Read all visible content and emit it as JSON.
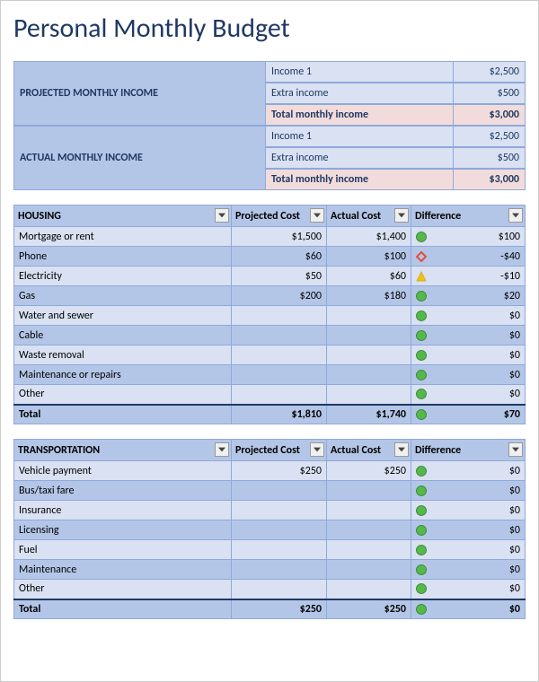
{
  "title": "Personal Monthly Budget",
  "colors": {
    "header_bg": "#b4c6e7",
    "row_light": "#d9e1f2",
    "row_dark": "#b4c6e7",
    "total_bg": "#f2dcdb",
    "border": "#8ea9db",
    "title": "#1f3864",
    "green": "#54b948",
    "red": "#e74c3c",
    "yellow": "#f1c40f"
  },
  "income": {
    "projected": {
      "label": "PROJECTED MONTHLY INCOME",
      "rows": [
        {
          "label": "Income 1",
          "value": "$2,500"
        },
        {
          "label": "Extra income",
          "value": "$500"
        }
      ],
      "total_label": "Total monthly income",
      "total_value": "$3,000"
    },
    "actual": {
      "label": "ACTUAL MONTHLY INCOME",
      "rows": [
        {
          "label": "Income 1",
          "value": "$2,500"
        },
        {
          "label": "Extra income",
          "value": "$500"
        }
      ],
      "total_label": "Total monthly income",
      "total_value": "$3,000"
    }
  },
  "columns": {
    "projected": "Projected Cost",
    "actual": "Actual Cost",
    "difference": "Difference"
  },
  "categories": [
    {
      "name": "HOUSING",
      "rows": [
        {
          "label": "Mortgage or rent",
          "projected": "$1,500",
          "actual": "$1,400",
          "ind": "green",
          "diff": "$100"
        },
        {
          "label": "Phone",
          "projected": "$60",
          "actual": "$100",
          "ind": "red",
          "diff": "-$40"
        },
        {
          "label": "Electricity",
          "projected": "$50",
          "actual": "$60",
          "ind": "yellow",
          "diff": "-$10"
        },
        {
          "label": "Gas",
          "projected": "$200",
          "actual": "$180",
          "ind": "green",
          "diff": "$20"
        },
        {
          "label": "Water and sewer",
          "projected": "",
          "actual": "",
          "ind": "green",
          "diff": "$0"
        },
        {
          "label": "Cable",
          "projected": "",
          "actual": "",
          "ind": "green",
          "diff": "$0"
        },
        {
          "label": "Waste removal",
          "projected": "",
          "actual": "",
          "ind": "green",
          "diff": "$0"
        },
        {
          "label": "Maintenance or repairs",
          "projected": "",
          "actual": "",
          "ind": "green",
          "diff": "$0"
        },
        {
          "label": "Other",
          "projected": "",
          "actual": "",
          "ind": "green",
          "diff": "$0"
        }
      ],
      "total": {
        "label": "Total",
        "projected": "$1,810",
        "actual": "$1,740",
        "ind": "green",
        "diff": "$70"
      }
    },
    {
      "name": "TRANSPORTATION",
      "rows": [
        {
          "label": "Vehicle payment",
          "projected": "$250",
          "actual": "$250",
          "ind": "green",
          "diff": "$0"
        },
        {
          "label": "Bus/taxi fare",
          "projected": "",
          "actual": "",
          "ind": "green",
          "diff": "$0"
        },
        {
          "label": "Insurance",
          "projected": "",
          "actual": "",
          "ind": "green",
          "diff": "$0"
        },
        {
          "label": "Licensing",
          "projected": "",
          "actual": "",
          "ind": "green",
          "diff": "$0"
        },
        {
          "label": "Fuel",
          "projected": "",
          "actual": "",
          "ind": "green",
          "diff": "$0"
        },
        {
          "label": "Maintenance",
          "projected": "",
          "actual": "",
          "ind": "green",
          "diff": "$0"
        },
        {
          "label": "Other",
          "projected": "",
          "actual": "",
          "ind": "green",
          "diff": "$0"
        }
      ],
      "total": {
        "label": "Total",
        "projected": "$250",
        "actual": "$250",
        "ind": "green",
        "diff": "$0"
      }
    }
  ]
}
